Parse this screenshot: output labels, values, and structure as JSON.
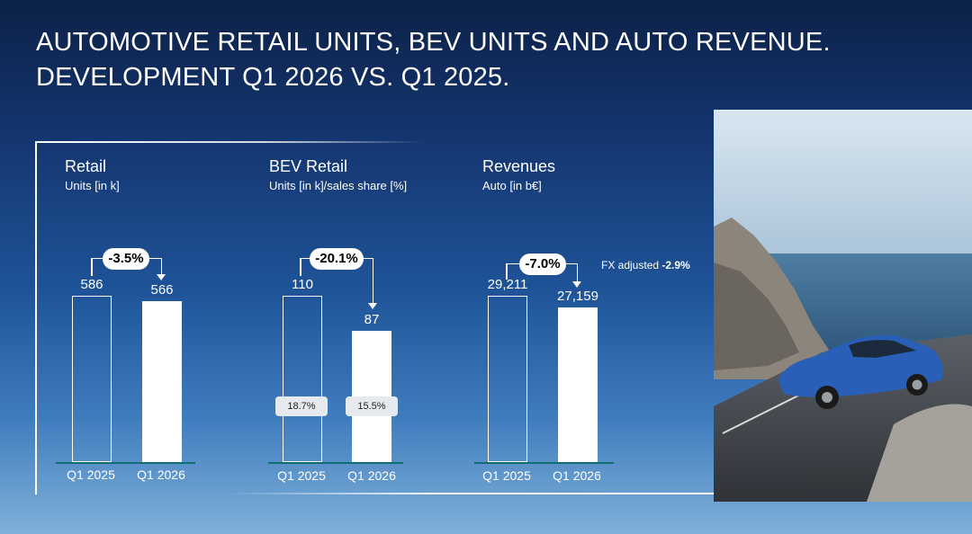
{
  "slide": {
    "title_line1": "AUTOMOTIVE RETAIL UNITS, BEV UNITS AND AUTO REVENUE.",
    "title_line2": "DEVELOPMENT Q1 2026 VS. Q1 2025."
  },
  "colors": {
    "bar_fill": "#ffffff",
    "baseline": "#0f6c72",
    "background_top": "#0c2147",
    "background_bottom": "#7fb0d9"
  },
  "chart_data": [
    {
      "type": "bar",
      "title": "Retail",
      "subtitle": "Units [in k]",
      "categories": [
        "Q1 2025",
        "Q1 2026"
      ],
      "values": [
        586,
        566
      ],
      "value_labels": [
        "586",
        "566"
      ],
      "change_label": "-3.5%",
      "scale_max": 760
    },
    {
      "type": "bar",
      "title": "BEV Retail",
      "subtitle": "Units [in k]/sales share [%]",
      "categories": [
        "Q1 2025",
        "Q1 2026"
      ],
      "values": [
        110,
        87
      ],
      "value_labels": [
        "110",
        "87"
      ],
      "sales_share_labels": [
        "18.7%",
        "15.5%"
      ],
      "change_label": "-20.1%",
      "scale_max": 143
    },
    {
      "type": "bar",
      "title": "Revenues",
      "subtitle": "Auto [in b€]",
      "categories": [
        "Q1 2025",
        "Q1 2026"
      ],
      "values": [
        29211,
        27159
      ],
      "value_labels": [
        "29,211",
        "27,159"
      ],
      "change_label": "-7.0%",
      "fx_note": "FX adjusted",
      "fx_value": "-2.9%",
      "scale_max": 37900
    }
  ]
}
